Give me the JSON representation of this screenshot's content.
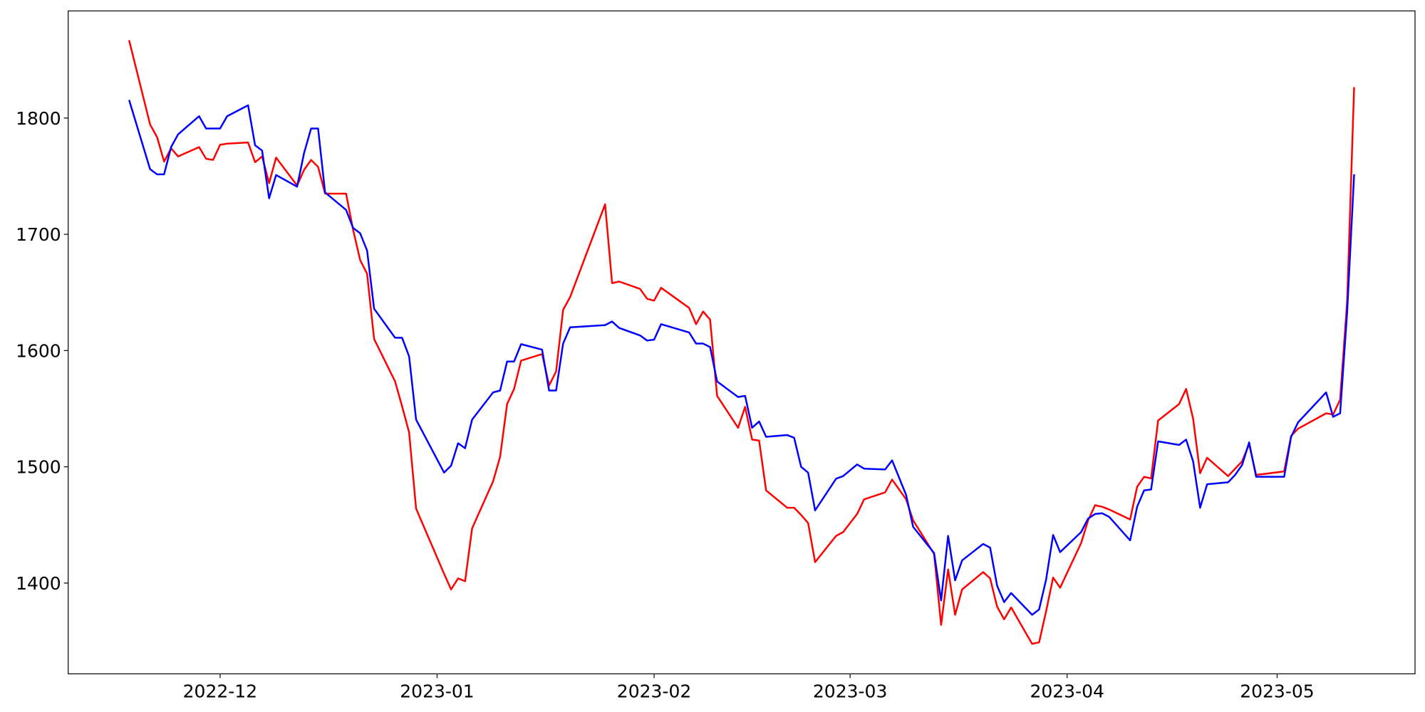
{
  "chart_data": {
    "type": "line",
    "x": [
      19314,
      19317,
      19318,
      19319,
      19320,
      19321,
      19324,
      19325,
      19326,
      19327,
      19328,
      19331,
      19332,
      19333,
      19334,
      19335,
      19338,
      19339,
      19340,
      19341,
      19342,
      19345,
      19346,
      19347,
      19348,
      19349,
      19352,
      19353,
      19354,
      19355,
      19359,
      19360,
      19361,
      19362,
      19363,
      19366,
      19367,
      19368,
      19369,
      19370,
      19373,
      19374,
      19375,
      19376,
      19377,
      19382,
      19383,
      19384,
      19387,
      19388,
      19389,
      19390,
      19394,
      19395,
      19396,
      19397,
      19398,
      19401,
      19402,
      19403,
      19404,
      19405,
      19408,
      19409,
      19410,
      19411,
      19412,
      19415,
      19416,
      19418,
      19419,
      19422,
      19423,
      19425,
      19426,
      19429,
      19430,
      19431,
      19432,
      19433,
      19436,
      19437,
      19438,
      19439,
      19440,
      19443,
      19444,
      19445,
      19446,
      19447,
      19450,
      19451,
      19452,
      19453,
      19454,
      19457,
      19458,
      19459,
      19460,
      19461,
      19464,
      19465,
      19466,
      19467,
      19468,
      19471,
      19472,
      19473,
      19474,
      19475,
      19479,
      19480,
      19481,
      19485,
      19486,
      19487,
      19488,
      19489
    ],
    "series": [
      {
        "color": "#ff0000",
        "values": [
          1867,
          1794.5,
          1783.6,
          1762.5,
          1774,
          1767,
          1775,
          1765,
          1764,
          1777,
          1778,
          1779,
          1762,
          1767,
          1744,
          1766,
          1742,
          1755.5,
          1764,
          1758,
          1735,
          1735,
          1704,
          1678,
          1666,
          1610,
          1573.4,
          1552,
          1529.7,
          1464,
          1408,
          1394.5,
          1404,
          1401.6,
          1447,
          1487.5,
          1508.6,
          1554,
          1567,
          1591.4,
          1597,
          1570,
          1582,
          1635,
          1646,
          1725.8,
          1658,
          1659.4,
          1653,
          1644.5,
          1643,
          1654,
          1636.7,
          1622.7,
          1633.6,
          1626.6,
          1561,
          1533.6,
          1551.6,
          1523.4,
          1522.6,
          1479.7,
          1464.8,
          1464.8,
          1458.6,
          1451.6,
          1418,
          1440.6,
          1443.8,
          1459.4,
          1472,
          1478,
          1489,
          1472,
          1454,
          1425,
          1364,
          1411.7,
          1372.7,
          1394.5,
          1409.4,
          1404,
          1379.7,
          1368.8,
          1379,
          1347.7,
          1349,
          1375.8,
          1404.7,
          1396,
          1434.4,
          1454,
          1467,
          1465.6,
          1463.3,
          1454.7,
          1482.8,
          1491.4,
          1490,
          1539.8,
          1554,
          1567,
          1541.4,
          1494.5,
          1507.8,
          1492,
          1498.4,
          1504.7,
          1519.5,
          1493,
          1496,
          1526.6,
          1532.8,
          1546,
          1545,
          1557.8,
          1642,
          1826.6
        ]
      },
      {
        "color": "#0000ff",
        "values": [
          1815.6,
          1756,
          1751.6,
          1751.6,
          1775,
          1786,
          1801.6,
          1791,
          1791,
          1791,
          1801.6,
          1811,
          1776.6,
          1772,
          1731,
          1751,
          1741,
          1770,
          1791,
          1791,
          1736,
          1721,
          1705.5,
          1701,
          1686,
          1636,
          1611,
          1611,
          1595,
          1540.6,
          1495,
          1501,
          1520.3,
          1516,
          1540.6,
          1564,
          1565.6,
          1590.6,
          1590.6,
          1605.5,
          1600.8,
          1565.6,
          1565.6,
          1606,
          1620,
          1621.9,
          1625,
          1619.5,
          1613,
          1608.6,
          1609.4,
          1622.7,
          1615.6,
          1606,
          1606,
          1603,
          1573.4,
          1560,
          1561,
          1533.6,
          1539,
          1525.8,
          1527.3,
          1525,
          1500,
          1495,
          1462.5,
          1489.8,
          1492,
          1502,
          1498.4,
          1497.7,
          1505.5,
          1475.8,
          1448.4,
          1425.8,
          1385,
          1440.6,
          1402.3,
          1419.5,
          1433.6,
          1430.5,
          1397.7,
          1383.6,
          1391.4,
          1372.7,
          1377.3,
          1403,
          1441.4,
          1426.6,
          1443.8,
          1455.5,
          1459.4,
          1460,
          1457,
          1436.7,
          1465.6,
          1479.7,
          1480.5,
          1521.9,
          1518.8,
          1523.4,
          1504.7,
          1464.8,
          1485,
          1486.7,
          1493,
          1501.6,
          1521,
          1491.4,
          1491.4,
          1525.8,
          1538.3,
          1564,
          1543,
          1546,
          1632.8,
          1751.6
        ]
      }
    ],
    "xlim": [
      19305.3,
      19497.7
    ],
    "xticks": [
      {
        "value": 19327,
        "label": "2022-12"
      },
      {
        "value": 19358,
        "label": "2023-01"
      },
      {
        "value": 19389,
        "label": "2023-02"
      },
      {
        "value": 19417,
        "label": "2023-03"
      },
      {
        "value": 19448,
        "label": "2023-04"
      },
      {
        "value": 19478,
        "label": "2023-05"
      }
    ],
    "ylim": [
      1321.9,
      1892.2
    ],
    "yticks": [
      1400,
      1500,
      1600,
      1700,
      1800
    ]
  }
}
